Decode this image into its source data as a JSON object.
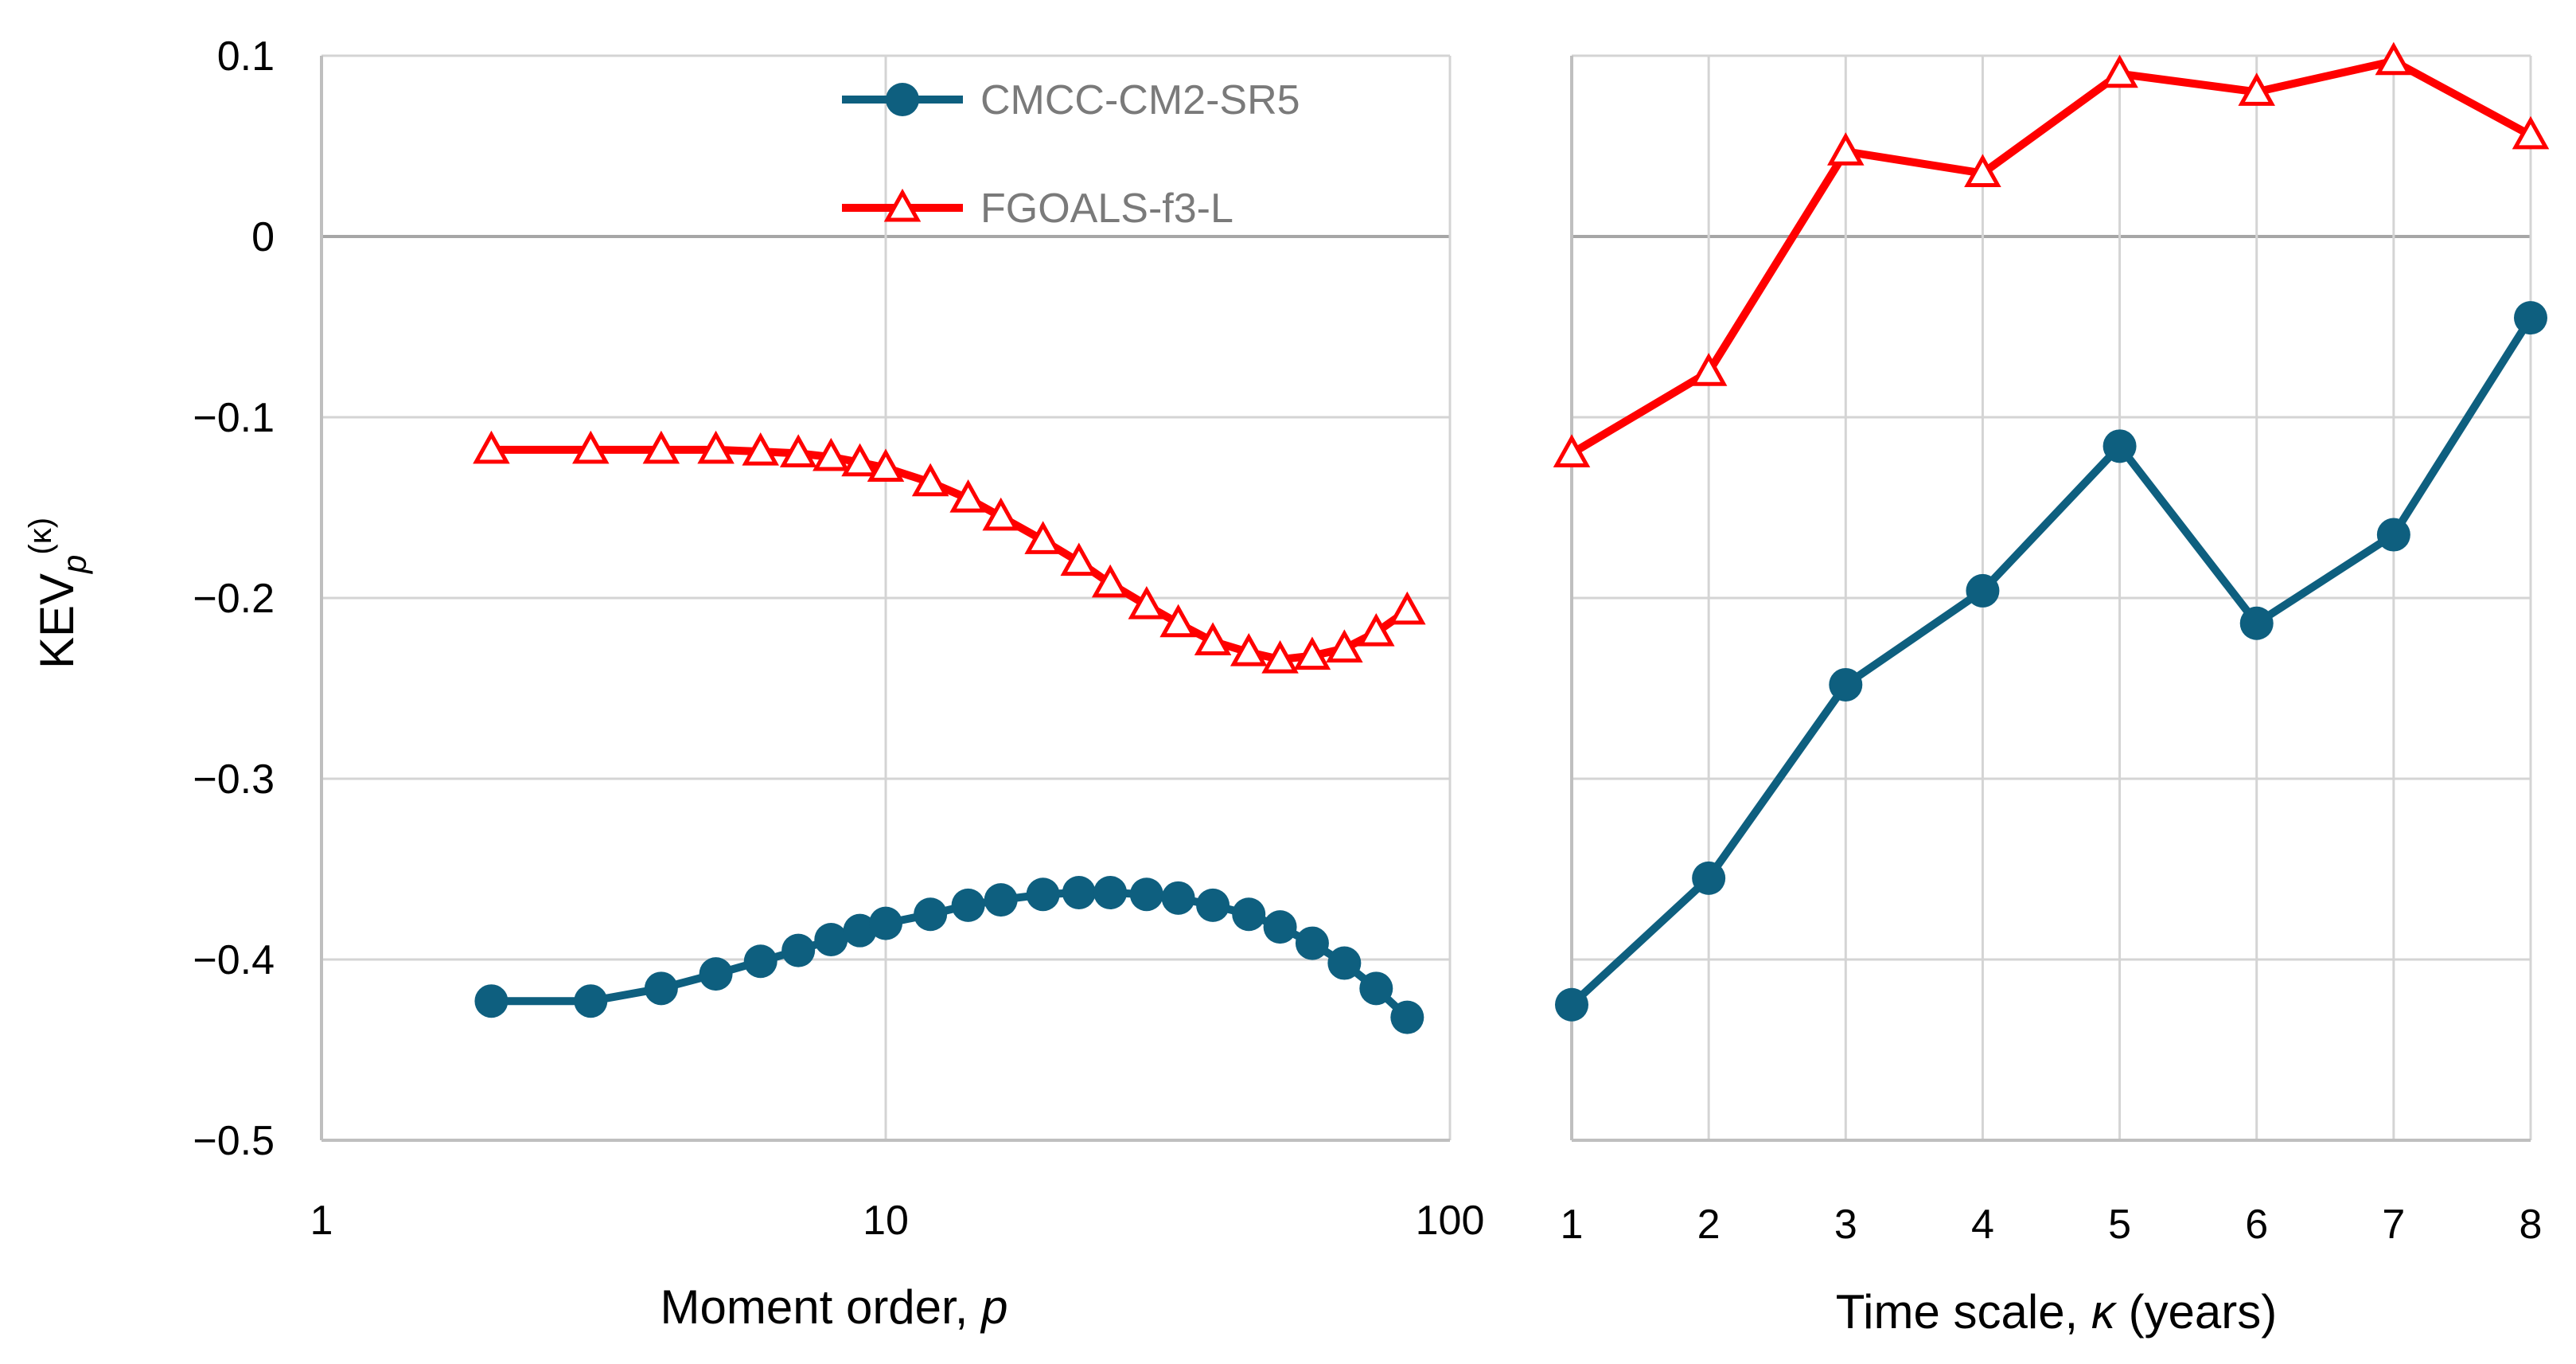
{
  "colors": {
    "cmcc": "#0e5f7f",
    "fgoals": "#ff0000",
    "grid": "#d4d4d4",
    "zero_line": "#a6a6a6",
    "axis": "#bfbfbf"
  },
  "chart_data": [
    {
      "type": "line",
      "x_scale": "log",
      "xlabel": "Moment order, p",
      "xlabel_text": "Moment order, ",
      "xlabel_var": "p",
      "ylabel_main": "KEV",
      "ylabel_sub": "p",
      "ylabel_sup": "(κ)",
      "xlim": [
        1,
        100
      ],
      "ylim": [
        -0.5,
        0.1
      ],
      "x_ticks": [
        1,
        10,
        100
      ],
      "x_tick_labels": [
        "1",
        "10",
        "100"
      ],
      "y_ticks": [
        0.1,
        0,
        -0.1,
        -0.2,
        -0.3,
        -0.4,
        -0.5
      ],
      "y_tick_labels": [
        "0.1",
        "0",
        "−0.1",
        "−0.2",
        "−0.3",
        "−0.4",
        "−0.5"
      ],
      "legend_position": "top",
      "series": [
        {
          "name": "CMCC-CM2-SR5",
          "marker": "circle",
          "x": [
            2,
            3,
            4,
            5,
            6,
            7,
            8,
            9,
            10,
            12,
            14,
            16,
            19,
            22,
            25,
            29,
            33,
            38,
            44,
            50,
            57,
            65,
            74,
            84
          ],
          "y": [
            -0.423,
            -0.423,
            -0.416,
            -0.408,
            -0.401,
            -0.395,
            -0.389,
            -0.384,
            -0.38,
            -0.375,
            -0.37,
            -0.367,
            -0.364,
            -0.363,
            -0.363,
            -0.364,
            -0.366,
            -0.37,
            -0.375,
            -0.382,
            -0.391,
            -0.402,
            -0.416,
            -0.432
          ]
        },
        {
          "name": "FGOALS-f3-L",
          "marker": "triangle-open",
          "x": [
            2,
            3,
            4,
            5,
            6,
            7,
            8,
            9,
            10,
            12,
            14,
            16,
            19,
            22,
            25,
            29,
            33,
            38,
            44,
            50,
            57,
            65,
            74,
            84
          ],
          "y": [
            -0.118,
            -0.118,
            -0.118,
            -0.118,
            -0.119,
            -0.12,
            -0.122,
            -0.125,
            -0.128,
            -0.136,
            -0.145,
            -0.155,
            -0.168,
            -0.18,
            -0.192,
            -0.204,
            -0.214,
            -0.224,
            -0.23,
            -0.234,
            -0.232,
            -0.228,
            -0.219,
            -0.207
          ]
        }
      ]
    },
    {
      "type": "line",
      "xlabel": "Time scale, κ (years)",
      "xlabel_text": "Time scale, ",
      "xlabel_var": "κ",
      "xlabel_rest": " (years)",
      "xlim": [
        1,
        8
      ],
      "ylim": [
        -0.5,
        0.1
      ],
      "x_ticks": [
        1,
        2,
        3,
        4,
        5,
        6,
        7,
        8
      ],
      "x_tick_labels": [
        "1",
        "2",
        "3",
        "4",
        "5",
        "6",
        "7",
        "8"
      ],
      "series": [
        {
          "name": "CMCC-CM2-SR5",
          "marker": "circle",
          "x": [
            1,
            2,
            3,
            4,
            5,
            6,
            7,
            8
          ],
          "y": [
            -0.425,
            -0.355,
            -0.248,
            -0.196,
            -0.116,
            -0.214,
            -0.165,
            -0.045
          ]
        },
        {
          "name": "FGOALS-f3-L",
          "marker": "triangle-open",
          "x": [
            1,
            2,
            3,
            4,
            5,
            6,
            7,
            8
          ],
          "y": [
            -0.12,
            -0.075,
            0.047,
            0.035,
            0.09,
            0.08,
            0.097,
            0.056
          ]
        }
      ]
    }
  ]
}
